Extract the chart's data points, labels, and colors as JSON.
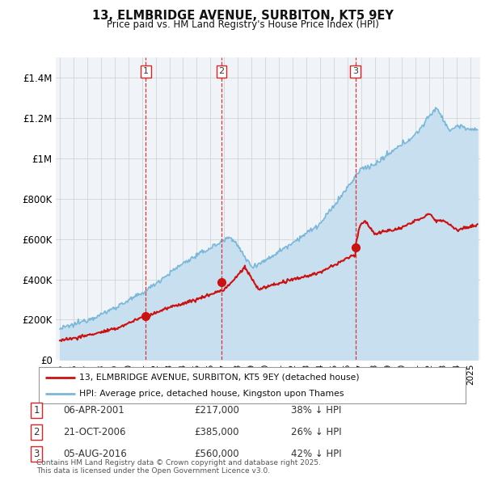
{
  "title": "13, ELMBRIDGE AVENUE, SURBITON, KT5 9EY",
  "subtitle": "Price paid vs. HM Land Registry's House Price Index (HPI)",
  "background_color": "#ffffff",
  "chart_bg_color": "#f0f4f8",
  "grid_color": "#cccccc",
  "ylim": [
    0,
    1500000
  ],
  "yticks": [
    0,
    200000,
    400000,
    600000,
    800000,
    1000000,
    1200000,
    1400000
  ],
  "ytick_labels": [
    "£0",
    "£200K",
    "£400K",
    "£600K",
    "£800K",
    "£1M",
    "£1.2M",
    "£1.4M"
  ],
  "sale_dates_num": [
    2001.27,
    2006.81,
    2016.59
  ],
  "sale_prices": [
    217000,
    385000,
    560000
  ],
  "sale_labels": [
    "1",
    "2",
    "3"
  ],
  "hpi_color": "#7ab8d9",
  "hpi_fill_color": "#c8dff0",
  "price_color": "#cc1111",
  "vline_color": "#dd2222",
  "legend_label_price": "13, ELMBRIDGE AVENUE, SURBITON, KT5 9EY (detached house)",
  "legend_label_hpi": "HPI: Average price, detached house, Kingston upon Thames",
  "table_rows": [
    {
      "num": "1",
      "date": "06-APR-2001",
      "price": "£217,000",
      "hpi": "38% ↓ HPI"
    },
    {
      "num": "2",
      "date": "21-OCT-2006",
      "price": "£385,000",
      "hpi": "26% ↓ HPI"
    },
    {
      "num": "3",
      "date": "05-AUG-2016",
      "price": "£560,000",
      "hpi": "42% ↓ HPI"
    }
  ],
  "footer": "Contains HM Land Registry data © Crown copyright and database right 2025.\nThis data is licensed under the Open Government Licence v3.0.",
  "xlim_start": 1994.7,
  "xlim_end": 2025.7
}
